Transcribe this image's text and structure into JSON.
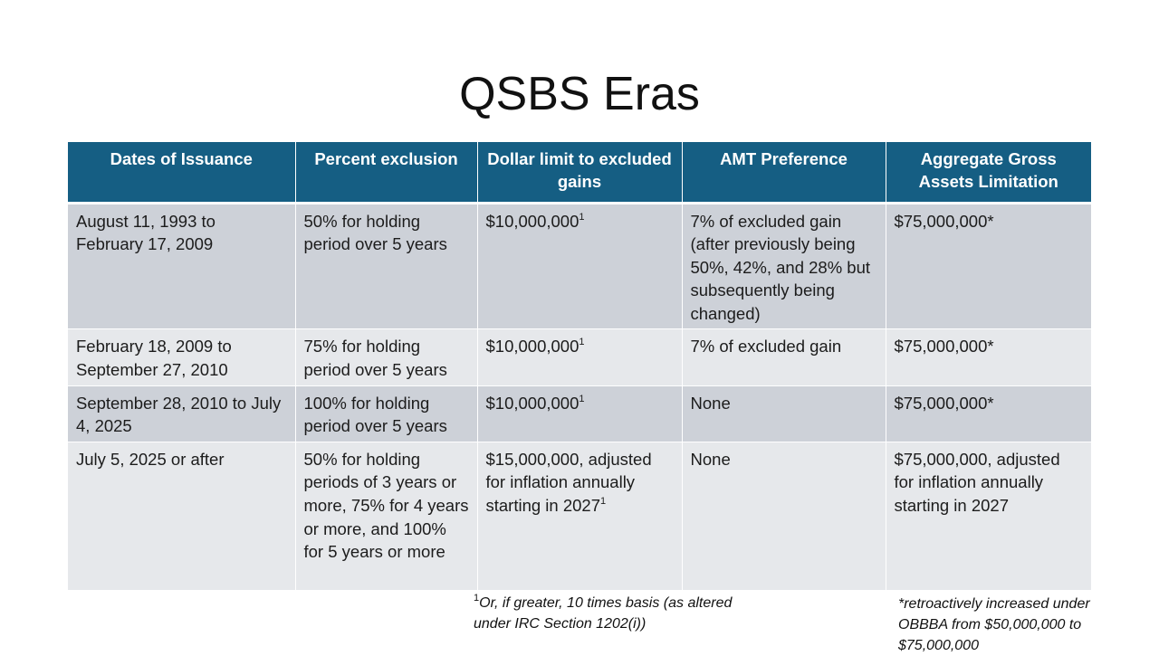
{
  "slide": {
    "title": "QSBS Eras"
  },
  "table": {
    "headers": [
      "Dates of Issuance",
      "Percent exclusion",
      "Dollar limit to excluded gains",
      "AMT Preference",
      "Aggregate Gross Assets Limitation"
    ],
    "rows": [
      {
        "dates": "August 11, 1993 to February 17, 2009",
        "percent": "50% for holding period over 5 years",
        "dollar_limit": "$10,000,000",
        "dollar_limit_marker": "1",
        "amt": "7% of excluded gain (after previously being 50%, 42%, and 28% but subsequently being changed)",
        "gross_assets": "$75,000,000*"
      },
      {
        "dates": "February 18, 2009 to September 27, 2010",
        "percent": "75% for holding period over 5 years",
        "dollar_limit": "$10,000,000",
        "dollar_limit_marker": "1",
        "amt": "7% of excluded gain",
        "gross_assets": "$75,000,000*"
      },
      {
        "dates": "September 28, 2010 to July 4, 2025",
        "percent": "100% for holding period over 5 years",
        "dollar_limit": "$10,000,000",
        "dollar_limit_marker": "1",
        "amt": "None",
        "gross_assets": "$75,000,000*"
      },
      {
        "dates": "July 5, 2025 or after",
        "percent": "50% for holding periods of 3 years or more, 75% for 4 years or more, and 100% for 5 years or more",
        "dollar_limit": "$15,000,000, adjusted for inflation annually starting in 2027",
        "dollar_limit_marker": "1",
        "amt": "None",
        "gross_assets": "$75,000,000, adjusted for inflation annually starting in 2027"
      }
    ]
  },
  "footnotes": {
    "note1_marker": "1",
    "note1": "Or, if greater, 10 times basis (as altered under IRC Section 1202(i))",
    "note2": "*retroactively increased under OBBBA from $50,000,000 to $75,000,000"
  },
  "colors": {
    "header_bg": "#155e83",
    "row_dark": "#cdd1d8",
    "row_light": "#e6e8eb"
  }
}
